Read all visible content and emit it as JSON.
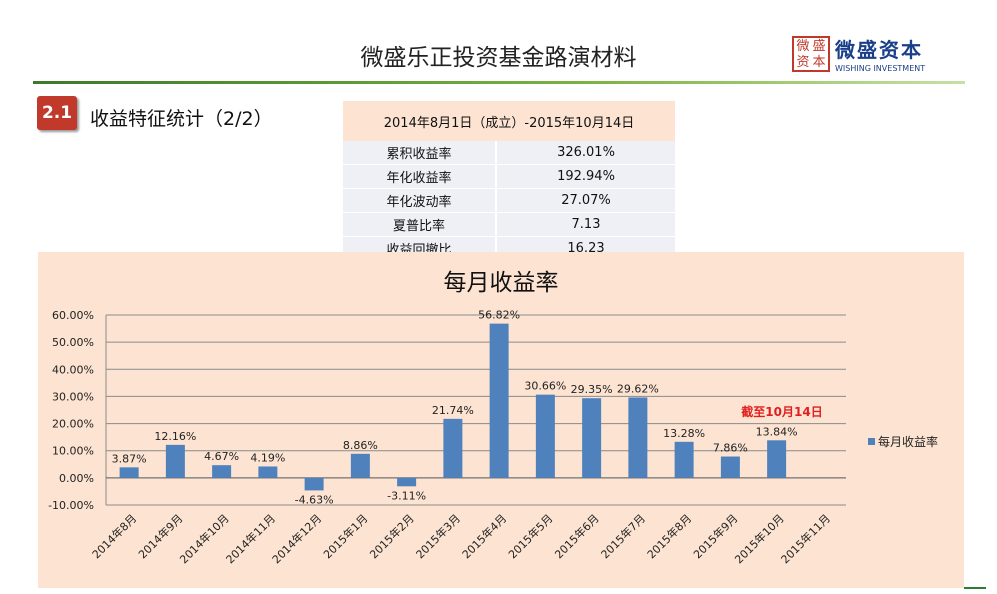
{
  "header": {
    "title": "微盛乐正投资基金路演材料"
  },
  "logo": {
    "seal": [
      "微",
      "盛",
      "资",
      "本"
    ],
    "name": "微盛资本",
    "english": "WISHING INVESTMENT"
  },
  "section": {
    "number": "2.1",
    "label": "收益特征统计（2/2）"
  },
  "stats_table": {
    "header": "2014年8月1日（成立）-2015年10月14日",
    "rows": [
      {
        "label": "累积收益率",
        "value": "326.01%"
      },
      {
        "label": "年化收益率",
        "value": "192.94%"
      },
      {
        "label": "年化波动率",
        "value": "27.07%"
      },
      {
        "label": "夏普比率",
        "value": "7.13"
      },
      {
        "label": "收益回撤比",
        "value": "16.23"
      }
    ]
  },
  "chart_data": {
    "type": "bar",
    "title": "每月收益率",
    "categories": [
      "2014年8月",
      "2014年9月",
      "2014年10月",
      "2014年11月",
      "2014年12月",
      "2015年1月",
      "2015年2月",
      "2015年3月",
      "2015年4月",
      "2015年5月",
      "2015年6月",
      "2015年7月",
      "2015年8月",
      "2015年9月",
      "2015年10月",
      "2015年11月"
    ],
    "series": [
      {
        "name": "每月收益率",
        "values": [
          3.87,
          12.16,
          4.67,
          4.19,
          -4.63,
          8.86,
          -3.11,
          21.74,
          56.82,
          30.66,
          29.35,
          29.62,
          13.28,
          7.86,
          13.84,
          null
        ],
        "labels": [
          "3.87%",
          "12.16%",
          "4.67%",
          "4.19%",
          "-4.63%",
          "8.86%",
          "-3.11%",
          "21.74%",
          "56.82%",
          "30.66%",
          "29.35%",
          "29.62%",
          "13.28%",
          "7.86%",
          "13.84%",
          ""
        ]
      }
    ],
    "ylim": [
      -10,
      60
    ],
    "yticks": [
      "-10.00%",
      "0.00%",
      "10.00%",
      "20.00%",
      "30.00%",
      "40.00%",
      "50.00%",
      "60.00%"
    ],
    "ytick_values": [
      -10,
      0,
      10,
      20,
      30,
      40,
      50,
      60
    ],
    "grid": true,
    "legend": "right",
    "annotation": "截至10月14日",
    "bar_color": "#4f81bd",
    "annotation_color": "#e02020"
  }
}
